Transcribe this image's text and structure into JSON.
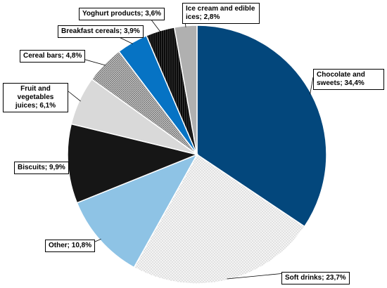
{
  "chart_data": {
    "type": "pie",
    "slices": [
      {
        "label": "Chocolate and sweets",
        "value": 34.4,
        "text": "Chocolate and sweets; 34,4%",
        "color": "#03477C",
        "pattern": "solid"
      },
      {
        "label": "Soft drinks",
        "value": 23.7,
        "text": "Soft drinks; 23,7%",
        "color": "#F2F2F2",
        "pattern": "dots"
      },
      {
        "label": "Other",
        "value": 10.8,
        "text": "Other; 10,8%",
        "color": "#8EC3E5",
        "pattern": "solid"
      },
      {
        "label": "Biscuits",
        "value": 9.9,
        "text": "Biscuits; 9,9%",
        "color": "#161616",
        "pattern": "solid"
      },
      {
        "label": "Fruit and vegetables juices",
        "value": 6.1,
        "text": "Fruit and vegetables juices; 6,1%",
        "color": "#D9D9D9",
        "pattern": "solid"
      },
      {
        "label": "Cereal bars",
        "value": 4.8,
        "text": "Cereal bars; 4,8%",
        "color": "#A6A6A6",
        "pattern": "hatch"
      },
      {
        "label": "Breakfast cereals",
        "value": 3.9,
        "text": "Breakfast cereals; 3,9%",
        "color": "#0673C4",
        "pattern": "solid"
      },
      {
        "label": "Yoghurt products",
        "value": 3.6,
        "text": "Yoghurt products; 3,6%",
        "color": "#111111",
        "pattern": "vlines"
      },
      {
        "label": "Ice cream and edible ices",
        "value": 2.8,
        "text": "Ice cream and edible ices; 2,8%",
        "color": "#B0B0B0",
        "pattern": "solid"
      }
    ],
    "start_angle": "12 o'clock",
    "direction": "clockwise",
    "legend": "none",
    "data_labels": "callouts with leader lines"
  }
}
